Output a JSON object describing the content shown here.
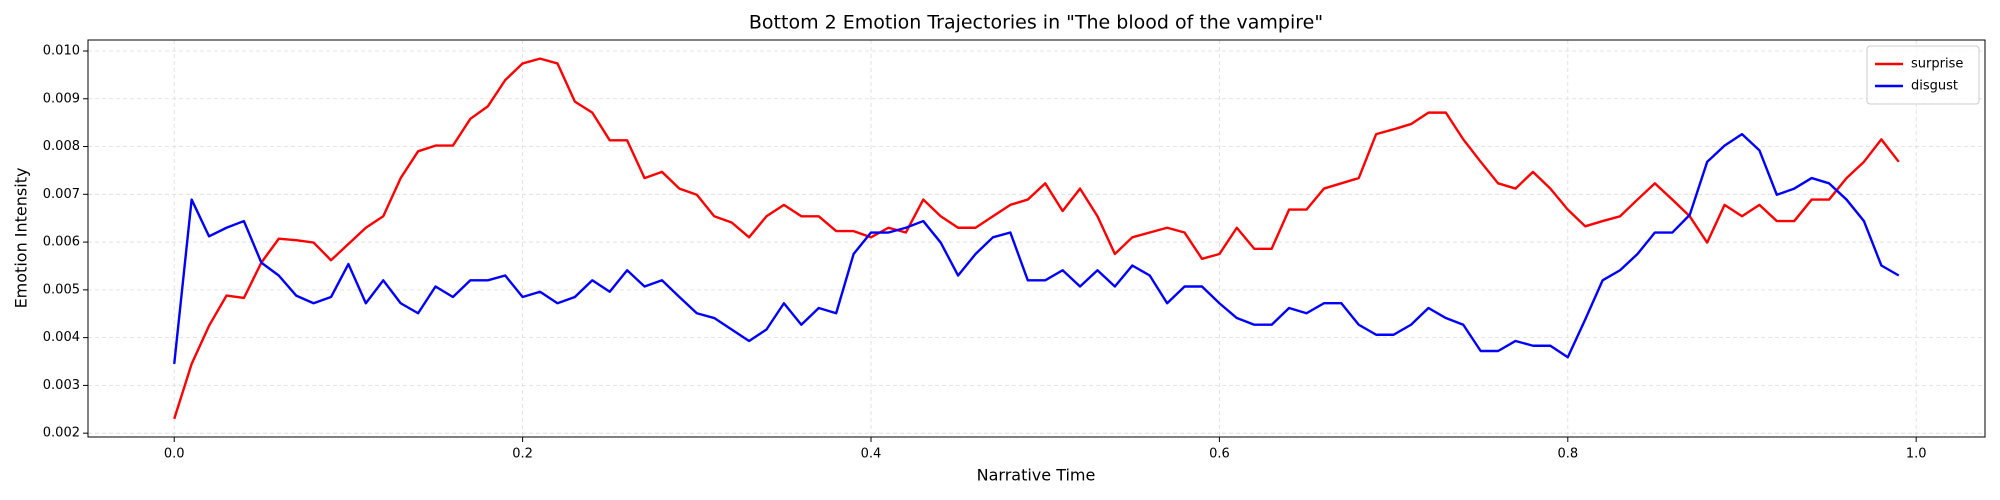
{
  "chart_data": {
    "type": "line",
    "title": "Bottom 2 Emotion Trajectories in \"The blood of the vampire\"",
    "xlabel": "Narrative Time",
    "ylabel": "Emotion Intensity",
    "x": [
      0,
      0.01,
      0.02,
      0.03,
      0.04,
      0.05,
      0.06,
      0.07,
      0.08,
      0.09,
      0.1,
      0.11,
      0.12,
      0.13,
      0.14,
      0.15,
      0.16,
      0.17,
      0.18,
      0.19,
      0.2,
      0.21,
      0.22,
      0.23,
      0.24,
      0.25,
      0.26,
      0.27,
      0.28,
      0.29,
      0.3,
      0.31,
      0.32,
      0.33,
      0.34,
      0.35,
      0.36,
      0.37,
      0.38,
      0.39,
      0.4,
      0.41,
      0.42,
      0.43,
      0.44,
      0.45,
      0.46,
      0.47,
      0.48,
      0.49,
      0.5,
      0.51,
      0.52,
      0.53,
      0.54,
      0.55,
      0.56,
      0.57,
      0.58,
      0.59,
      0.6,
      0.61,
      0.62,
      0.63,
      0.64,
      0.65,
      0.66,
      0.67,
      0.68,
      0.69,
      0.7,
      0.71,
      0.72,
      0.73,
      0.74,
      0.75,
      0.76,
      0.77,
      0.78,
      0.79,
      0.8,
      0.81,
      0.82,
      0.83,
      0.84,
      0.85,
      0.86,
      0.87,
      0.88,
      0.89,
      0.9,
      0.91,
      0.92,
      0.93,
      0.94,
      0.95,
      0.96,
      0.97,
      0.98,
      0.99
    ],
    "series": [
      {
        "name": "surprise",
        "color": "#ff0000",
        "values": [
          0.0023,
          0.00345,
          0.00425,
          0.00488,
          0.00483,
          0.00557,
          0.00607,
          0.00604,
          0.00599,
          0.00562,
          0.00596,
          0.0063,
          0.00654,
          0.00734,
          0.0079,
          0.00802,
          0.00802,
          0.00858,
          0.00884,
          0.00939,
          0.00974,
          0.00984,
          0.00974,
          0.00894,
          0.00871,
          0.00813,
          0.00813,
          0.00734,
          0.00747,
          0.00712,
          0.00699,
          0.00654,
          0.00641,
          0.0061,
          0.00654,
          0.00678,
          0.00654,
          0.00654,
          0.00623,
          0.00623,
          0.0061,
          0.0063,
          0.0062,
          0.00689,
          0.00654,
          0.0063,
          0.0063,
          0.00654,
          0.00678,
          0.00689,
          0.00723,
          0.00665,
          0.00712,
          0.00654,
          0.00575,
          0.0061,
          0.0062,
          0.0063,
          0.0062,
          0.00565,
          0.00575,
          0.0063,
          0.00586,
          0.00586,
          0.00668,
          0.00668,
          0.00712,
          0.00723,
          0.00734,
          0.00826,
          0.00836,
          0.00847,
          0.00871,
          0.00871,
          0.00815,
          0.00768,
          0.00723,
          0.00712,
          0.00747,
          0.00712,
          0.00668,
          0.00633,
          0.00644,
          0.00654,
          0.00689,
          0.00723,
          0.00689,
          0.00654,
          0.00599,
          0.00678,
          0.00654,
          0.00678,
          0.00644,
          0.00644,
          0.00689,
          0.00689,
          0.00734,
          0.00768,
          0.00815,
          0.00768
        ]
      },
      {
        "name": "disgust",
        "color": "#0000ff",
        "values": [
          0.00345,
          0.00689,
          0.00612,
          0.0063,
          0.00644,
          0.00557,
          0.0053,
          0.00488,
          0.00472,
          0.00485,
          0.00554,
          0.00472,
          0.0052,
          0.00472,
          0.00451,
          0.00507,
          0.00485,
          0.0052,
          0.0052,
          0.0053,
          0.00485,
          0.00496,
          0.00472,
          0.00485,
          0.0052,
          0.00496,
          0.00541,
          0.00507,
          0.0052,
          0.00485,
          0.00451,
          0.00441,
          0.00417,
          0.00393,
          0.00417,
          0.00472,
          0.00427,
          0.00462,
          0.00451,
          0.00575,
          0.0062,
          0.0062,
          0.0063,
          0.00644,
          0.00599,
          0.0053,
          0.00575,
          0.0061,
          0.0062,
          0.0052,
          0.0052,
          0.00541,
          0.00507,
          0.00541,
          0.00507,
          0.00551,
          0.0053,
          0.00472,
          0.00507,
          0.00507,
          0.00472,
          0.00441,
          0.00427,
          0.00427,
          0.00462,
          0.00451,
          0.00472,
          0.00472,
          0.00427,
          0.00406,
          0.00406,
          0.00427,
          0.00462,
          0.00441,
          0.00427,
          0.00372,
          0.00372,
          0.00393,
          0.00383,
          0.00383,
          0.00359,
          0.00438,
          0.0052,
          0.00541,
          0.00575,
          0.0062,
          0.0062,
          0.00657,
          0.00768,
          0.00802,
          0.00826,
          0.00792,
          0.00699,
          0.00712,
          0.00734,
          0.00723,
          0.00689,
          0.00644,
          0.00551,
          0.0053
        ]
      }
    ],
    "xlim": [
      -0.0495,
      1.0395
    ],
    "ylim": [
      0.00192,
      0.01023
    ],
    "xticks": [
      {
        "value": 0,
        "label": "0.0"
      },
      0.2,
      0.4,
      0.6,
      0.8,
      {
        "value": 1,
        "label": "1.0"
      }
    ],
    "yticks": [
      0.002,
      0.003,
      0.004,
      0.005,
      0.006,
      0.007,
      0.008,
      0.009,
      {
        "value": 0.01,
        "label": "0.010"
      }
    ],
    "grid": true,
    "legend": "upper right"
  }
}
